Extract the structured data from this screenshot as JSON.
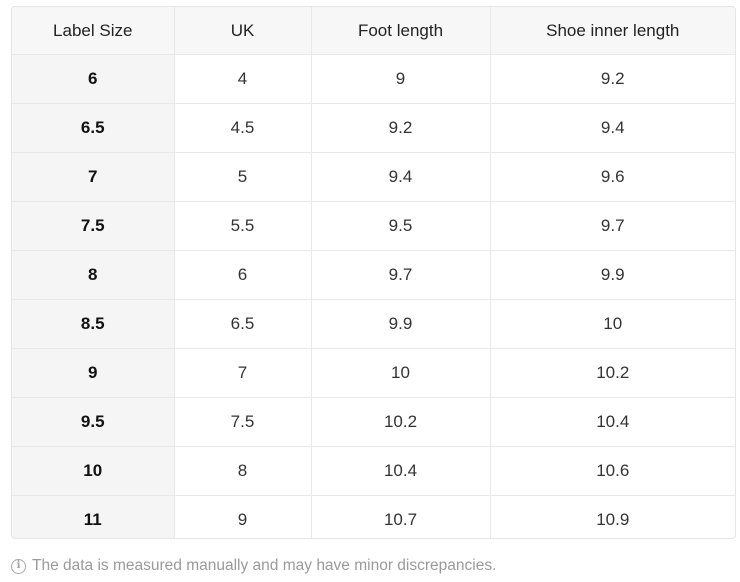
{
  "table": {
    "headers": [
      "Label Size",
      "UK",
      "Foot length",
      "Shoe inner length"
    ],
    "rows": [
      [
        "6",
        "4",
        "9",
        "9.2"
      ],
      [
        "6.5",
        "4.5",
        "9.2",
        "9.4"
      ],
      [
        "7",
        "5",
        "9.4",
        "9.6"
      ],
      [
        "7.5",
        "5.5",
        "9.5",
        "9.7"
      ],
      [
        "8",
        "6",
        "9.7",
        "9.9"
      ],
      [
        "8.5",
        "6.5",
        "9.9",
        "10"
      ],
      [
        "9",
        "7",
        "10",
        "10.2"
      ],
      [
        "9.5",
        "7.5",
        "10.2",
        "10.4"
      ],
      [
        "10",
        "8",
        "10.4",
        "10.6"
      ],
      [
        "11",
        "9",
        "10.7",
        "10.9"
      ]
    ]
  },
  "note": {
    "icon": "info-icon",
    "text": "The data is measured manually and may have minor discrepancies."
  }
}
